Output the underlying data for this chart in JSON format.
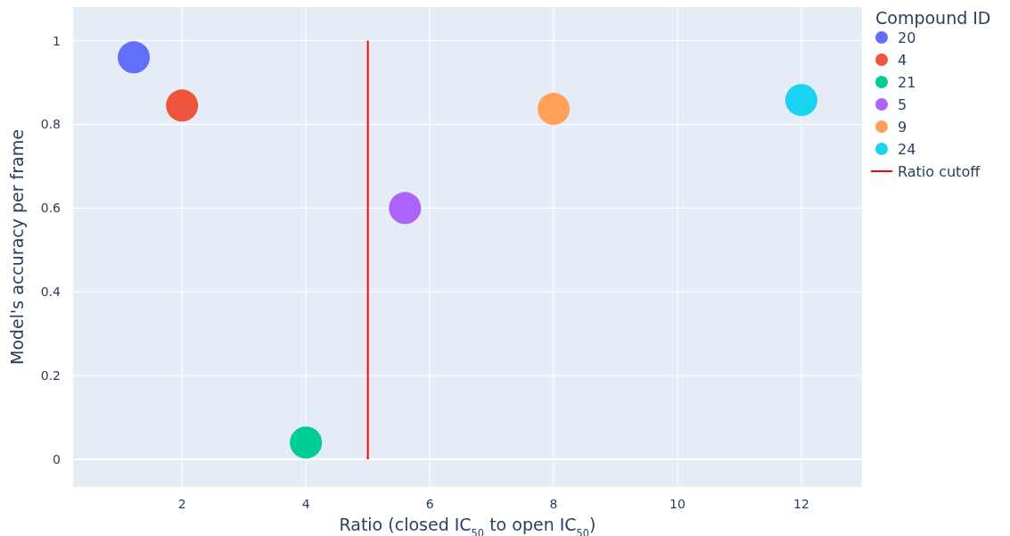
{
  "chart_data": {
    "type": "scatter",
    "xlabel": "Ratio (closed IC$_{50}$ to open IC$_{50}$)",
    "ylabel": "Model's accuracy per frame",
    "legend_title": "Compound ID",
    "xlim": [
      0.24,
      12.98
    ],
    "ylim": [
      -0.066,
      1.08
    ],
    "xticks": [
      2,
      4,
      6,
      8,
      10,
      12
    ],
    "yticks": [
      0,
      0.2,
      0.4,
      0.6,
      0.8,
      1
    ],
    "grid": true,
    "legend": "right",
    "series": [
      {
        "name": "20",
        "color": "#636efa",
        "marker": "circle",
        "x": [
          1.22
        ],
        "values": [
          0.96
        ]
      },
      {
        "name": "4",
        "color": "#ef553b",
        "marker": "circle",
        "x": [
          2
        ],
        "values": [
          0.845
        ]
      },
      {
        "name": "21",
        "color": "#00cc96",
        "marker": "circle",
        "x": [
          4
        ],
        "values": [
          0.04
        ]
      },
      {
        "name": "5",
        "color": "#ab63fa",
        "marker": "circle",
        "x": [
          5.6
        ],
        "values": [
          0.6
        ]
      },
      {
        "name": "9",
        "color": "#ffa15a",
        "marker": "circle",
        "x": [
          8
        ],
        "values": [
          0.837
        ]
      },
      {
        "name": "24",
        "color": "#19d3f3",
        "marker": "circle",
        "x": [
          12
        ],
        "values": [
          0.858
        ]
      },
      {
        "name": "Ratio cutoff",
        "type": "line",
        "color": "#ff0000",
        "x": [
          5,
          5
        ],
        "values": [
          0,
          1
        ]
      }
    ]
  }
}
